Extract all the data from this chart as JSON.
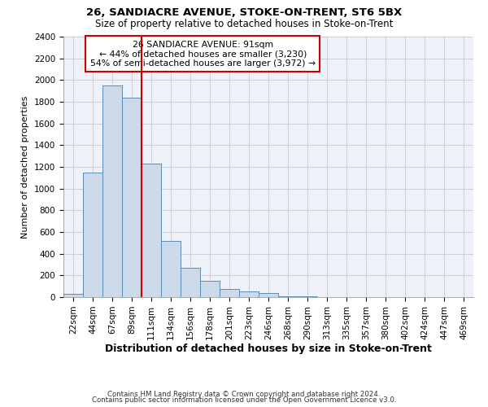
{
  "title1": "26, SANDIACRE AVENUE, STOKE-ON-TRENT, ST6 5BX",
  "title2": "Size of property relative to detached houses in Stoke-on-Trent",
  "xlabel": "Distribution of detached houses by size in Stoke-on-Trent",
  "ylabel": "Number of detached properties",
  "footnote1": "Contains HM Land Registry data © Crown copyright and database right 2024.",
  "footnote2": "Contains public sector information licensed under the Open Government Licence v3.0.",
  "annotation_line1": "26 SANDIACRE AVENUE: 91sqm",
  "annotation_line2": "← 44% of detached houses are smaller (3,230)",
  "annotation_line3": "54% of semi-detached houses are larger (3,972) →",
  "bar_color": "#ccd9e8",
  "bar_edge_color": "#5b8db8",
  "vline_color": "#cc0000",
  "annotation_box_color": "#cc0000",
  "grid_color": "#c8c8d0",
  "background_color": "#eef2f8",
  "categories": [
    "22sqm",
    "44sqm",
    "67sqm",
    "89sqm",
    "111sqm",
    "134sqm",
    "156sqm",
    "178sqm",
    "201sqm",
    "223sqm",
    "246sqm",
    "268sqm",
    "290sqm",
    "313sqm",
    "335sqm",
    "357sqm",
    "380sqm",
    "402sqm",
    "424sqm",
    "447sqm",
    "469sqm"
  ],
  "values": [
    28,
    1150,
    1950,
    1840,
    1230,
    520,
    270,
    148,
    78,
    50,
    40,
    5,
    5,
    3,
    2,
    2,
    1,
    1,
    1,
    1,
    1
  ],
  "ylim": [
    0,
    2400
  ],
  "yticks": [
    0,
    200,
    400,
    600,
    800,
    1000,
    1200,
    1400,
    1600,
    1800,
    2000,
    2200,
    2400
  ],
  "vline_x_index": 3,
  "vline_x": 3.5
}
